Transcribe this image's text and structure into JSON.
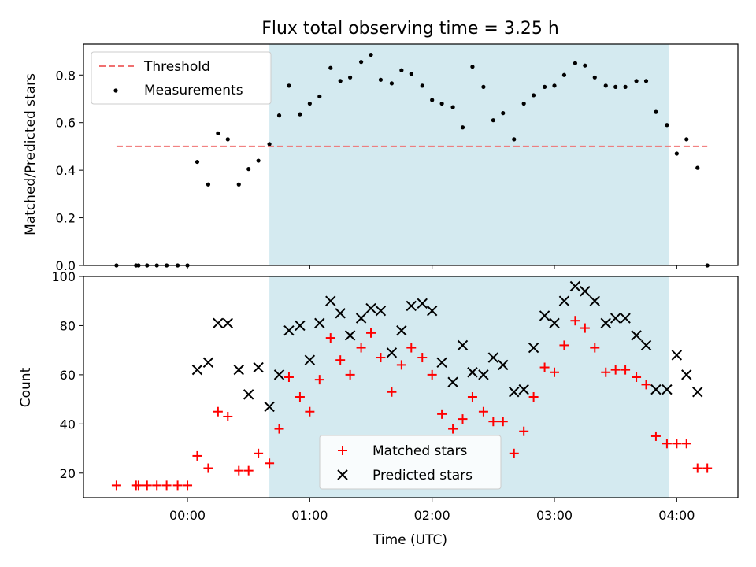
{
  "chart_data": [
    {
      "type": "scatter",
      "title": "Flux total observing time = 3.25 h",
      "xlabel": "",
      "ylabel": "Matched/Predicted stars",
      "xlim": [
        -0.85,
        4.5
      ],
      "ylim": [
        0,
        0.93
      ],
      "yticks": [
        0.0,
        0.2,
        0.4,
        0.6,
        0.8
      ],
      "shaded_span": [
        0.67,
        3.94
      ],
      "shade_color": "#d4eaf0",
      "threshold": {
        "name": "Threshold",
        "value": 0.5,
        "x_range": [
          -0.58,
          4.25
        ],
        "color": "#f07070"
      },
      "legend": {
        "placement": "top-left",
        "entries": [
          "Threshold",
          "Measurements"
        ]
      },
      "series": [
        {
          "name": "Measurements",
          "marker": "dot",
          "color": "#000000",
          "x": [
            -0.58,
            -0.42,
            -0.4,
            -0.33,
            -0.25,
            -0.17,
            -0.08,
            0.0,
            0.08,
            0.17,
            0.25,
            0.33,
            0.42,
            0.5,
            0.58,
            0.67,
            0.75,
            0.83,
            0.92,
            1.0,
            1.08,
            1.17,
            1.25,
            1.33,
            1.42,
            1.5,
            1.58,
            1.67,
            1.75,
            1.83,
            1.92,
            2.0,
            2.08,
            2.17,
            2.25,
            2.33,
            2.42,
            2.5,
            2.58,
            2.67,
            2.75,
            2.83,
            2.92,
            3.0,
            3.08,
            3.17,
            3.25,
            3.33,
            3.42,
            3.5,
            3.58,
            3.67,
            3.75,
            3.83,
            3.92,
            4.0,
            4.08,
            4.17,
            4.25
          ],
          "y": [
            0.0,
            0.0,
            0.0,
            0.0,
            0.0,
            0.0,
            0.0,
            0.0,
            0.435,
            0.34,
            0.555,
            0.53,
            0.34,
            0.405,
            0.44,
            0.51,
            0.63,
            0.755,
            0.635,
            0.68,
            0.71,
            0.83,
            0.775,
            0.79,
            0.855,
            0.885,
            0.78,
            0.765,
            0.82,
            0.805,
            0.755,
            0.695,
            0.68,
            0.665,
            0.58,
            0.835,
            0.75,
            0.61,
            0.64,
            0.53,
            0.68,
            0.715,
            0.75,
            0.755,
            0.8,
            0.85,
            0.84,
            0.79,
            0.755,
            0.75,
            0.75,
            0.775,
            0.775,
            0.645,
            0.59,
            0.47,
            0.53,
            0.41,
            0.0
          ]
        }
      ]
    },
    {
      "type": "scatter",
      "title": "",
      "xlabel": "Time (UTC)",
      "ylabel": "Count",
      "xlim": [
        -0.85,
        4.5
      ],
      "ylim": [
        10,
        100
      ],
      "yticks": [
        20,
        40,
        60,
        80,
        100
      ],
      "xticks": [
        0,
        1,
        2,
        3,
        4
      ],
      "xtick_labels": [
        "00:00",
        "01:00",
        "02:00",
        "03:00",
        "04:00"
      ],
      "shaded_span": [
        0.67,
        3.94
      ],
      "shade_color": "#d4eaf0",
      "legend": {
        "placement": "lower center",
        "entries": [
          "Matched stars",
          "Predicted stars"
        ]
      },
      "series": [
        {
          "name": "Matched stars",
          "marker": "plus",
          "color": "#ff0000",
          "x": [
            -0.58,
            -0.42,
            -0.4,
            -0.33,
            -0.25,
            -0.17,
            -0.08,
            0.0,
            0.08,
            0.17,
            0.25,
            0.33,
            0.42,
            0.5,
            0.58,
            0.67,
            0.75,
            0.83,
            0.92,
            1.0,
            1.08,
            1.17,
            1.25,
            1.33,
            1.42,
            1.5,
            1.58,
            1.67,
            1.75,
            1.83,
            1.92,
            2.0,
            2.08,
            2.17,
            2.25,
            2.33,
            2.42,
            2.5,
            2.58,
            2.67,
            2.75,
            2.83,
            2.92,
            3.0,
            3.08,
            3.17,
            3.25,
            3.33,
            3.42,
            3.5,
            3.58,
            3.67,
            3.75,
            3.83,
            3.92,
            4.0,
            4.08,
            4.17,
            4.25
          ],
          "y": [
            15,
            15,
            15,
            15,
            15,
            15,
            15,
            15,
            27,
            22,
            45,
            43,
            21,
            21,
            28,
            24,
            38,
            59,
            51,
            45,
            58,
            75,
            66,
            60,
            71,
            77,
            67,
            53,
            64,
            71,
            67,
            60,
            44,
            38,
            42,
            51,
            45,
            41,
            41,
            28,
            37,
            51,
            63,
            61,
            72,
            82,
            79,
            71,
            61,
            62,
            62,
            59,
            56,
            35,
            32,
            32,
            32,
            22,
            22
          ]
        },
        {
          "name": "Predicted stars",
          "marker": "x",
          "color": "#000000",
          "x": [
            0.08,
            0.17,
            0.25,
            0.33,
            0.42,
            0.5,
            0.58,
            0.67,
            0.75,
            0.83,
            0.92,
            1.0,
            1.08,
            1.17,
            1.25,
            1.33,
            1.42,
            1.5,
            1.58,
            1.67,
            1.75,
            1.83,
            1.92,
            2.0,
            2.08,
            2.17,
            2.25,
            2.33,
            2.42,
            2.5,
            2.58,
            2.67,
            2.75,
            2.83,
            2.92,
            3.0,
            3.08,
            3.17,
            3.25,
            3.33,
            3.42,
            3.5,
            3.58,
            3.67,
            3.75,
            3.83,
            3.92,
            4.0,
            4.08,
            4.17
          ],
          "y": [
            62,
            65,
            81,
            81,
            62,
            52,
            63,
            47,
            60,
            78,
            80,
            66,
            81,
            90,
            85,
            76,
            83,
            87,
            86,
            69,
            78,
            88,
            89,
            86,
            65,
            57,
            72,
            61,
            60,
            67,
            64,
            53,
            54,
            71,
            84,
            81,
            90,
            96,
            94,
            90,
            81,
            83,
            83,
            76,
            72,
            54,
            54,
            68,
            60,
            53
          ]
        }
      ]
    }
  ]
}
